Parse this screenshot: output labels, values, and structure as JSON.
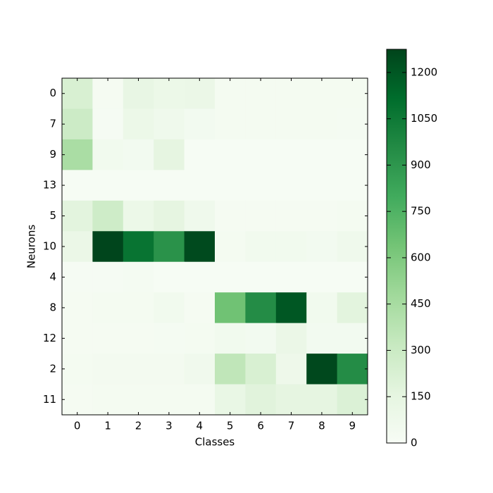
{
  "chart_data": {
    "type": "heatmap",
    "xlabel": "Classes",
    "ylabel": "Neurons",
    "x_categories": [
      "0",
      "1",
      "2",
      "3",
      "4",
      "5",
      "6",
      "7",
      "8",
      "9"
    ],
    "y_categories": [
      "0",
      "7",
      "9",
      "13",
      "5",
      "10",
      "4",
      "8",
      "12",
      "2",
      "11"
    ],
    "values": [
      [
        230,
        20,
        130,
        100,
        110,
        30,
        30,
        30,
        30,
        30
      ],
      [
        290,
        15,
        100,
        70,
        40,
        30,
        30,
        30,
        30,
        25
      ],
      [
        440,
        50,
        40,
        150,
        10,
        10,
        10,
        10,
        10,
        10
      ],
      [
        10,
        10,
        10,
        10,
        10,
        10,
        10,
        10,
        10,
        10
      ],
      [
        170,
        280,
        100,
        150,
        70,
        20,
        20,
        20,
        20,
        30
      ],
      [
        110,
        1270,
        1080,
        920,
        1250,
        30,
        50,
        50,
        40,
        70
      ],
      [
        15,
        15,
        25,
        10,
        10,
        10,
        10,
        10,
        10,
        10
      ],
      [
        20,
        30,
        30,
        50,
        20,
        650,
        950,
        1200,
        50,
        170
      ],
      [
        20,
        20,
        20,
        25,
        30,
        50,
        40,
        110,
        40,
        40
      ],
      [
        30,
        35,
        35,
        35,
        60,
        350,
        230,
        80,
        1260,
        950
      ],
      [
        20,
        30,
        30,
        30,
        30,
        120,
        180,
        150,
        150,
        210
      ]
    ],
    "clim": [
      0,
      1275
    ],
    "cticks": [
      0,
      150,
      300,
      450,
      600,
      750,
      900,
      1050,
      1200
    ],
    "colormap": [
      "#f7fcf5",
      "#e5f5e0",
      "#c7e9c0",
      "#a1d99b",
      "#74c476",
      "#41ab5d",
      "#238b45",
      "#006d2c",
      "#00441b"
    ]
  }
}
